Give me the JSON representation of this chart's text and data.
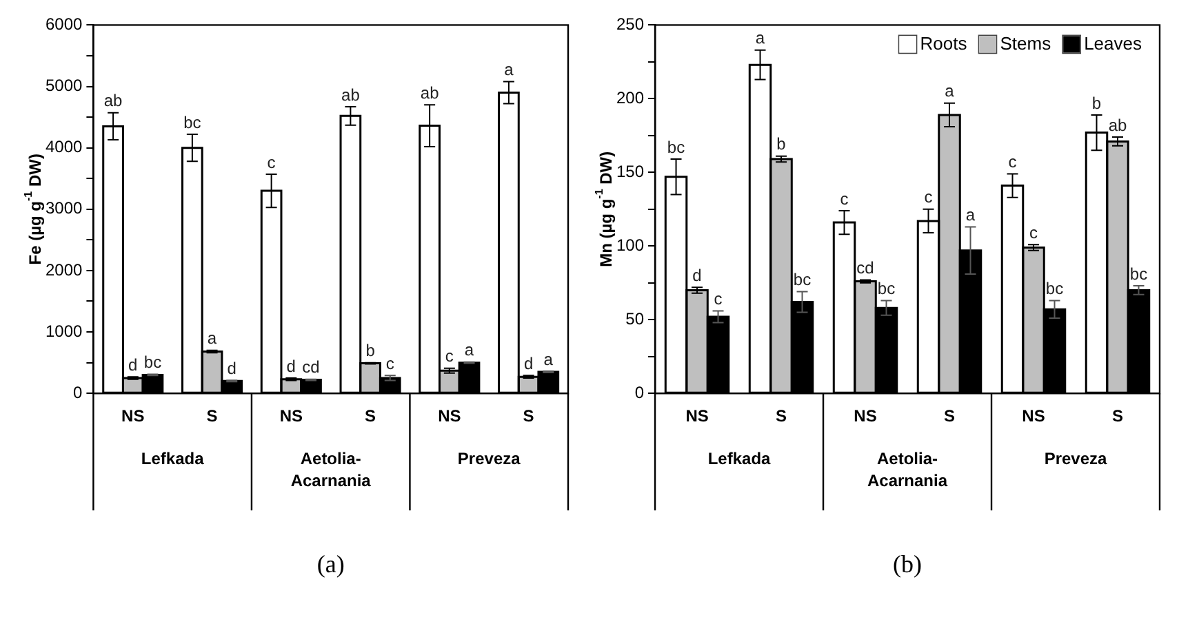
{
  "chart_data": [
    {
      "type": "bar",
      "ylabel": "Fe (µg g$^{-1}$ DW)",
      "categories": [
        "NS",
        "S",
        "NS",
        "S",
        "NS",
        "S"
      ],
      "annotations": [
        "Lefkada",
        "Aetolia-Acarnania",
        "Preveza",
        "(a)"
      ],
      "ylim": [
        0,
        6000
      ],
      "yticks": [
        0,
        {
          "value": 500,
          "label": null
        },
        1000,
        {
          "value": 1500,
          "label": null
        },
        2000,
        {
          "value": 2500,
          "label": null
        },
        3000,
        {
          "value": 3500,
          "label": null
        },
        4000,
        {
          "value": 4500,
          "label": null
        },
        5000,
        {
          "value": 5500,
          "label": null
        },
        6000
      ],
      "grid": false,
      "legend": false,
      "series": [
        {
          "color": "#ffffff",
          "values": [
            4350,
            4000,
            3300,
            4520,
            4360,
            4900
          ],
          "errors": [
            220,
            220,
            270,
            150,
            340,
            180
          ],
          "value_labels": [
            "ab",
            "bc",
            "c",
            "ab",
            "ab",
            "a"
          ]
        },
        {
          "color": "#bfbfbf",
          "values": [
            250,
            680,
            230,
            490,
            370,
            270
          ],
          "errors": [
            20,
            20,
            20,
            10,
            40,
            20
          ],
          "value_labels": [
            "d",
            "a",
            "d",
            "b",
            "c",
            "d"
          ]
        },
        {
          "color": "#000000",
          "values": [
            300,
            200,
            220,
            250,
            500,
            350
          ],
          "errors": [
            10,
            10,
            10,
            40,
            10,
            10
          ],
          "value_labels": [
            "bc",
            "d",
            "cd",
            "c",
            "a",
            "a"
          ]
        }
      ]
    },
    {
      "type": "bar",
      "ylabel": "Mn (µg g$^{-1}$ DW)",
      "categories": [
        "NS",
        "S",
        "NS",
        "S",
        "NS",
        "S"
      ],
      "annotations": [
        "Lefkada",
        "Aetolia-Acarnania",
        "Preveza",
        "(b)"
      ],
      "ylim": [
        0,
        250
      ],
      "yticks": [
        0,
        {
          "value": 25,
          "label": null
        },
        50,
        {
          "value": 75,
          "label": null
        },
        100,
        {
          "value": 125,
          "label": null
        },
        150,
        {
          "value": 175,
          "label": null
        },
        200,
        {
          "value": 225,
          "label": null
        },
        250
      ],
      "grid": false,
      "legend": "top right",
      "series": [
        {
          "name": "Roots",
          "color": "#ffffff",
          "values": [
            147,
            223,
            116,
            117,
            141,
            177
          ],
          "errors": [
            12,
            10,
            8,
            8,
            8,
            12
          ],
          "value_labels": [
            "bc",
            "a",
            "c",
            "c",
            "c",
            "b"
          ]
        },
        {
          "name": "Stems",
          "color": "#bfbfbf",
          "values": [
            70,
            159,
            76,
            189,
            99,
            171
          ],
          "errors": [
            2,
            2,
            1,
            8,
            2,
            3
          ],
          "value_labels": [
            "d",
            "b",
            "cd",
            "a",
            "c",
            "ab"
          ]
        },
        {
          "name": "Leaves",
          "color": "#000000",
          "values": [
            52,
            62,
            58,
            97,
            57,
            70
          ],
          "errors": [
            4,
            7,
            5,
            16,
            6,
            3
          ],
          "value_labels": [
            "c",
            "bc",
            "bc",
            "a",
            "bc",
            "bc"
          ]
        }
      ]
    }
  ]
}
